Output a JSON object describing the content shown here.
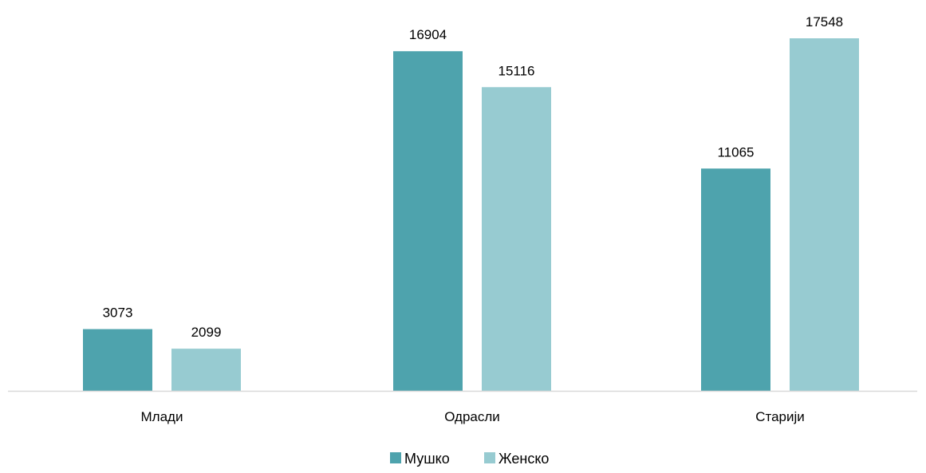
{
  "chart_data": {
    "type": "bar",
    "categories": [
      "Млади",
      "Одрасли",
      "Старији"
    ],
    "series": [
      {
        "name": "Мушко",
        "values": [
          3073,
          16904,
          11065
        ],
        "color": "#4ea3ad"
      },
      {
        "name": "Женско",
        "values": [
          2099,
          15116,
          17548
        ],
        "color": "#97cbd1"
      }
    ],
    "title": "",
    "xlabel": "",
    "ylabel": "",
    "ylim": [
      0,
      17548
    ],
    "grid": false,
    "legend_position": "bottom-center",
    "data_labels": true
  }
}
